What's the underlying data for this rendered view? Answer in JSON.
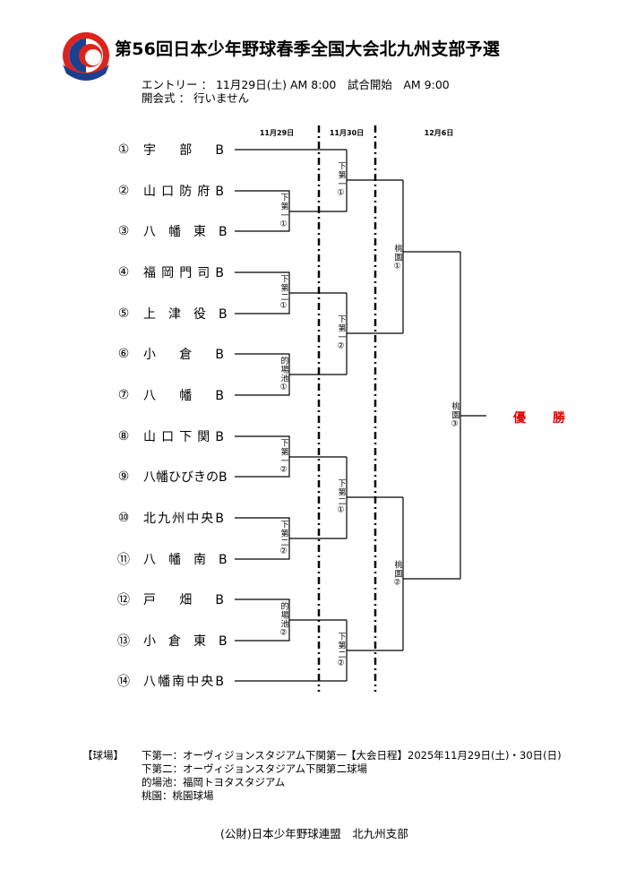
{
  "header": {
    "logo_text": "BOYS LEAGUE",
    "title": "第56回日本少年野球春季全国大会北九州支部予選",
    "entry": "エントリー ： 11月29日(土) AM 8:00　試合開始　AM 9:00",
    "opening": "開会式 ： 行いません"
  },
  "dates": [
    "11月29日",
    "11月30日",
    "12月6日"
  ],
  "teams": [
    {
      "num": "①",
      "name": "宇　部　B"
    },
    {
      "num": "②",
      "name": "山口防府B"
    },
    {
      "num": "③",
      "name": "八　幡　東　B"
    },
    {
      "num": "④",
      "name": "福岡門司B"
    },
    {
      "num": "⑤",
      "name": "上　津　役　B"
    },
    {
      "num": "⑥",
      "name": "小　倉　B"
    },
    {
      "num": "⑦",
      "name": "八　幡　B"
    },
    {
      "num": "⑧",
      "name": "山口下関B"
    },
    {
      "num": "⑨",
      "name": "八幡ひびきのB"
    },
    {
      "num": "⑩",
      "name": "北九州中央B"
    },
    {
      "num": "⑪",
      "name": "八　幡　南　B"
    },
    {
      "num": "⑫",
      "name": "戸　畑　B"
    },
    {
      "num": "⑬",
      "name": "小　倉　東　B"
    },
    {
      "num": "⑭",
      "name": "八幡南中央B"
    }
  ],
  "games": {
    "r1": [
      "下第一①",
      "下第二①",
      "的場池①",
      "下第一②",
      "下第二②",
      "的場池②"
    ],
    "r2": [
      "下第一①",
      "下第一②",
      "下第二①",
      "下第二②"
    ],
    "r3": [
      "桃園①",
      "桃園②"
    ],
    "final": "桃園③"
  },
  "champion": "優　勝",
  "footer": {
    "venue_label": "【球場】",
    "venues": [
      "下第一：オーヴィジョンスタジアム下関第一",
      "下第二：オーヴィジョンスタジアム下関第二球場",
      "的場池：福岡トヨタスタジアム",
      "桃園：桃園球場"
    ],
    "schedule": "【大会日程】2025年11月29日(土)・30日(日)",
    "organizer": "(公財)日本少年野球連盟　北九州支部"
  },
  "colors": {
    "champion": "#e00000",
    "logo_red": "#d9251d",
    "logo_blue": "#1d3f8f"
  }
}
